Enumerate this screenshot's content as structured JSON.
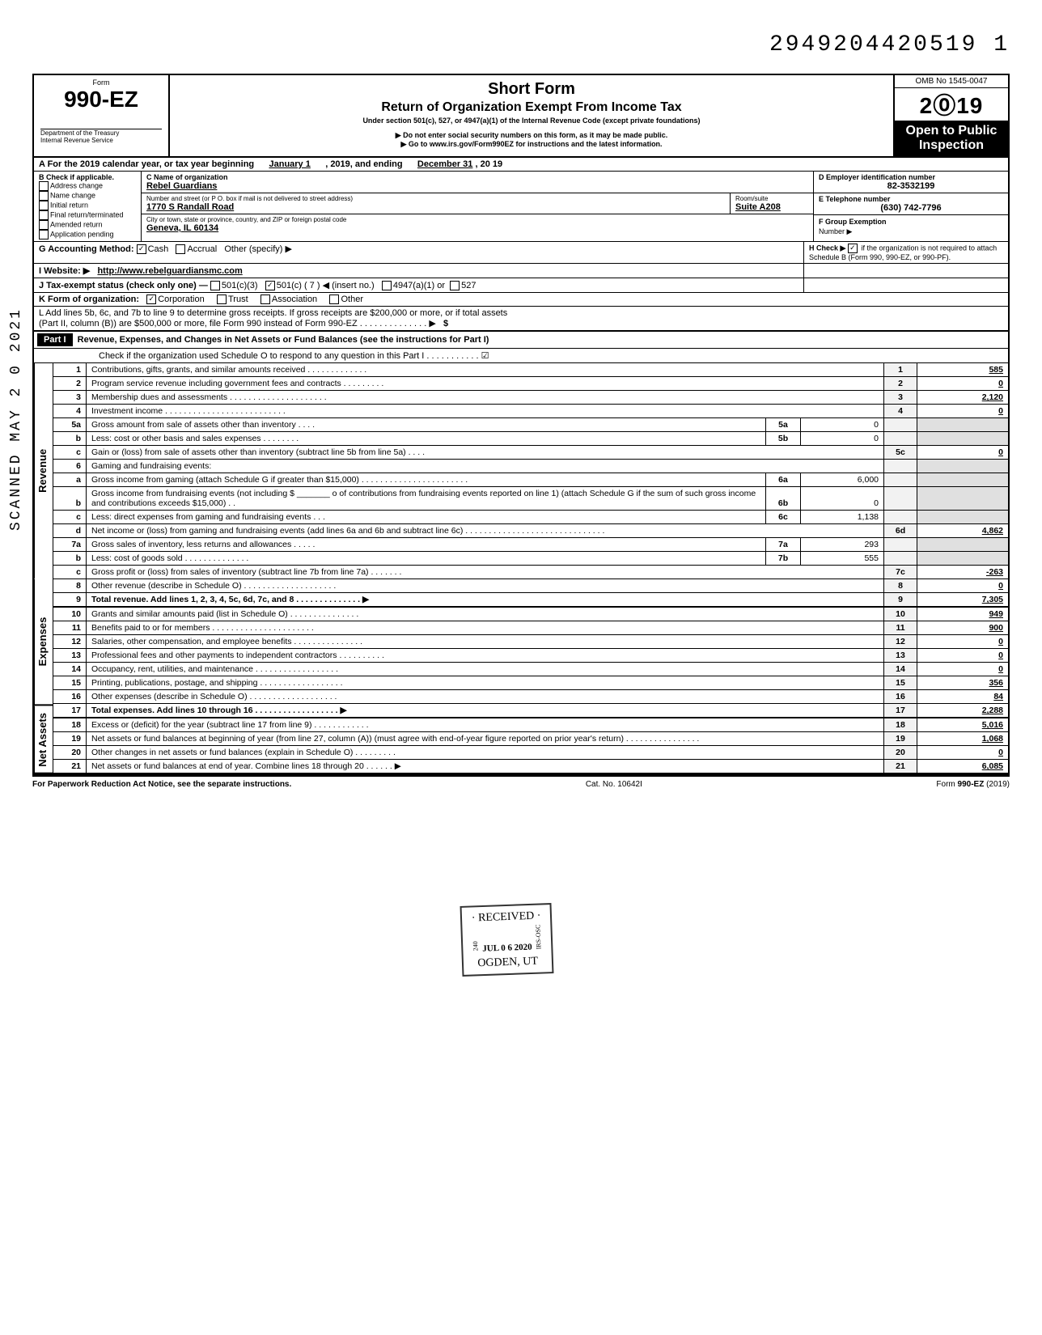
{
  "doc_number": "2949204420519 1",
  "side_stamp": "SCANNED MAY 2 0 2021",
  "form": {
    "prefix": "Form",
    "id": "990-EZ",
    "title": "Short Form",
    "subtitle": "Return of Organization Exempt From Income Tax",
    "subtext": "Under section 501(c), 527, or 4947(a)(1) of the Internal Revenue Code (except private foundations)",
    "warn1": "▶ Do not enter social security numbers on this form, as it may be made public.",
    "warn2": "▶ Go to www.irs.gov/Form990EZ for instructions and the latest information.",
    "dept": "Department of the Treasury",
    "irs": "Internal Revenue Service",
    "omb": "OMB No  1545-0047",
    "year": "2019",
    "inspection1": "Open to Public",
    "inspection2": "Inspection"
  },
  "lineA": {
    "label": "A  For the 2019 calendar year, or tax year beginning",
    "begin": "January 1",
    "mid": ", 2019, and ending",
    "end": "December 31",
    "yr": ", 20  19"
  },
  "lineB": {
    "label": "B  Check if applicable.",
    "opts": [
      "Address change",
      "Name change",
      "Initial return",
      "Final return/terminated",
      "Amended return",
      "Application pending"
    ]
  },
  "lineC": {
    "label": "C  Name of organization",
    "name": "Rebel Guardians",
    "addr_label": "Number and street (or P O. box if mail is not delivered to street address)",
    "addr": "1770 S Randall Road",
    "room_label": "Room/suite",
    "room": "Suite A208",
    "city_label": "City or town, state or province, country, and ZIP or foreign postal code",
    "city": "Geneva, IL 60134"
  },
  "lineD": {
    "label": "D Employer identification number",
    "value": "82-3532199"
  },
  "lineE": {
    "label": "E  Telephone number",
    "value": "(630) 742-7796"
  },
  "lineF": {
    "label": "F  Group Exemption",
    "sub": "Number ▶"
  },
  "lineG": {
    "label": "G  Accounting Method:",
    "cash": "Cash",
    "accrual": "Accrual",
    "other": "Other (specify) ▶"
  },
  "lineH": {
    "label": "H  Check ▶",
    "text": "if the organization is not required to attach Schedule B (Form 990, 990-EZ, or 990-PF)."
  },
  "lineI": {
    "label": "I   Website: ▶",
    "value": "http://www.rebelguardiansmc.com"
  },
  "lineJ": {
    "label": "J  Tax-exempt status (check only one) —",
    "c3": "501(c)(3)",
    "c": "501(c) (  7  ) ◀ (insert no.)",
    "a": "4947(a)(1) or",
    "s527": "527"
  },
  "lineK": {
    "label": "K  Form of organization:",
    "corp": "Corporation",
    "trust": "Trust",
    "assoc": "Association",
    "other": "Other"
  },
  "lineL": {
    "text1": "L  Add lines 5b, 6c, and 7b to line 9 to determine gross receipts. If gross receipts are $200,000 or more, or if total assets",
    "text2": "(Part II, column (B)) are $500,000 or more, file Form 990 instead of Form 990-EZ .  .  .  .  .  .  .  .  .  .  .  .  .  .  ▶",
    "dollar": "$"
  },
  "part1": {
    "label": "Part I",
    "title": "Revenue, Expenses, and Changes in Net Assets or Fund Balances (see the instructions for Part I)",
    "check": "Check if the organization used Schedule O to respond to any question in this Part I  .  .  .  .  .  .  .  .  .  .  .  ☑"
  },
  "stamp": {
    "l1": "· RECEIVED ·",
    "l2": "JUL 0 6 2020",
    "l3": "OGDEN, UT",
    "side": "IRS-OSC",
    "num": "240"
  },
  "lines": [
    {
      "n": "1",
      "d": "Contributions, gifts, grants, and similar amounts received .  .  .  .  .  .  .  .  .  .  .  .  .",
      "box": "1",
      "amt": "585"
    },
    {
      "n": "2",
      "d": "Program service revenue including government fees and contracts  .  .  .  .  .  .  .  .  .",
      "box": "2",
      "amt": "0"
    },
    {
      "n": "3",
      "d": "Membership dues and assessments .  .  .  .  .  .  .  .  .  .  .  .  .  .  .  .  .  .  .  .  .",
      "box": "3",
      "amt": "2,120"
    },
    {
      "n": "4",
      "d": "Investment income  .  .  .  .  .  .  .  .  .  .  .  .  .  .  .  .  .  .  .  .  .  .  .  .  .  .",
      "box": "4",
      "amt": "0"
    },
    {
      "n": "5a",
      "d": "Gross amount from sale of assets other than inventory  .  .  .  .",
      "sub": "5a",
      "subamt": "0"
    },
    {
      "n": "b",
      "d": "Less: cost or other basis and sales expenses .  .  .  .  .  .  .  .",
      "sub": "5b",
      "subamt": "0"
    },
    {
      "n": "c",
      "d": "Gain or (loss) from sale of assets other than inventory (subtract line 5b from line 5a)  .  .  .  .",
      "box": "5c",
      "amt": "0"
    },
    {
      "n": "6",
      "d": "Gaming and fundraising events:"
    },
    {
      "n": "a",
      "d": "Gross income from gaming (attach Schedule G if greater than $15,000) .  .  .  .  .  .  .  .  .  .  .  .  .  .  .  .  .  .  .  .  .  .  .",
      "sub": "6a",
      "subamt": "6,000"
    },
    {
      "n": "b",
      "d": "Gross income from fundraising events (not including  $ _______ o of contributions from fundraising events reported on line 1) (attach Schedule G if the sum of such gross income and contributions exceeds $15,000) .  .",
      "sub": "6b",
      "subamt": "0"
    },
    {
      "n": "c",
      "d": "Less: direct expenses from gaming and fundraising events  .  .  .",
      "sub": "6c",
      "subamt": "1,138"
    },
    {
      "n": "d",
      "d": "Net income or (loss) from gaming and fundraising events (add lines 6a and 6b and subtract line 6c)  .  .  .  .  .  .  .  .  .  .  .  .  .  .  .  .  .  .  .  .  .  .  .  .  .  .  .  .  .  .",
      "box": "6d",
      "amt": "4,862"
    },
    {
      "n": "7a",
      "d": "Gross sales of inventory, less returns and allowances .  .  .  .  .",
      "sub": "7a",
      "subamt": "293"
    },
    {
      "n": "b",
      "d": "Less: cost of goods sold  .  .  .  .  .  .  .  .  .  .  .  .  .  .",
      "sub": "7b",
      "subamt": "555"
    },
    {
      "n": "c",
      "d": "Gross profit or (loss) from sales of inventory (subtract line 7b from line 7a)  .  .  .  .  .  .  .",
      "box": "7c",
      "amt": "-263"
    },
    {
      "n": "8",
      "d": "Other revenue (describe in Schedule O) .  .  .  .  .  .  .  .  .  .  .  .  .  .  .  .  .  .  .  .",
      "box": "8",
      "amt": "0"
    },
    {
      "n": "9",
      "d": "Total revenue. Add lines 1, 2, 3, 4, 5c, 6d, 7c, and 8  .  .  .  .  .  .  .  .  .  .  .  .  .  .  ▶",
      "box": "9",
      "amt": "7,305",
      "bold": true
    },
    {
      "n": "10",
      "d": "Grants and similar amounts paid (list in Schedule O)  .  .  .  .  .  .  .  .  .  .  .  .  .  .  .",
      "box": "10",
      "amt": "949"
    },
    {
      "n": "11",
      "d": "Benefits paid to or for members  .  .  .  .  .  .  .  .  .  .  .  .  .  .  .  .  .  .  .  .  .  .",
      "box": "11",
      "amt": "900"
    },
    {
      "n": "12",
      "d": "Salaries, other compensation, and employee benefits .  .  .  .  .  .  .  .  .  .  .  .  .  .  .",
      "box": "12",
      "amt": "0"
    },
    {
      "n": "13",
      "d": "Professional fees and other payments to independent contractors .  .  .  .  .  .  .  .  .  .",
      "box": "13",
      "amt": "0"
    },
    {
      "n": "14",
      "d": "Occupancy, rent, utilities, and maintenance  .  .  .  .  .  .  .  .  .  .  .  .  .  .  .  .  .  .",
      "box": "14",
      "amt": "0"
    },
    {
      "n": "15",
      "d": "Printing, publications, postage, and shipping .  .  .  .  .  .  .  .  .  .  .  .  .  .  .  .  .  .",
      "box": "15",
      "amt": "356"
    },
    {
      "n": "16",
      "d": "Other expenses (describe in Schedule O) .  .  .  .  .  .  .  .  .  .  .  .  .  .  .  .  .  .  .",
      "box": "16",
      "amt": "84"
    },
    {
      "n": "17",
      "d": "Total expenses. Add lines 10 through 16  .  .  .  .  .  .  .  .  .  .  .  .  .  .  .  .  .  .  ▶",
      "box": "17",
      "amt": "2,288",
      "bold": true
    },
    {
      "n": "18",
      "d": "Excess or (deficit) for the year (subtract line 17 from line 9)  .  .  .  .  .  .  .  .  .  .  .  .",
      "box": "18",
      "amt": "5,016"
    },
    {
      "n": "19",
      "d": "Net assets or fund balances at beginning of year (from line 27, column (A)) (must agree with end-of-year figure reported on prior year's return)  .  .  .  .  .  .  .  .  .  .  .  .  .  .  .  .",
      "box": "19",
      "amt": "1,068"
    },
    {
      "n": "20",
      "d": "Other changes in net assets or fund balances (explain in Schedule O) .  .  .  .  .  .  .  .  .",
      "box": "20",
      "amt": "0"
    },
    {
      "n": "21",
      "d": "Net assets or fund balances at end of year. Combine lines 18 through 20  .  .  .  .  .  .  ▶",
      "box": "21",
      "amt": "6,085"
    }
  ],
  "vlabels": {
    "rev": "Revenue",
    "exp": "Expenses",
    "net": "Net Assets"
  },
  "footer": {
    "left": "For Paperwork Reduction Act Notice, see the separate instructions.",
    "mid": "Cat. No. 10642I",
    "right": "Form 990-EZ (2019)"
  }
}
